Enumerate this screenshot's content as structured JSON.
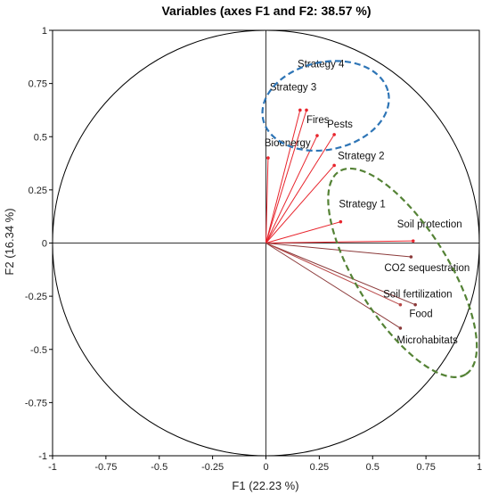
{
  "chart_data": {
    "type": "scatter",
    "title": "Variables (axes F1 and F2: 38.57 %)",
    "xlabel": "F1 (22.23 %)",
    "ylabel": "F2 (16.34 %)",
    "xlim": [
      -1,
      1
    ],
    "ylim": [
      -1,
      1
    ],
    "xticks": [
      "-1",
      "-0.75",
      "-0.5",
      "-0.25",
      "0",
      "0.25",
      "0.5",
      "0.75",
      "1"
    ],
    "yticks": [
      "1",
      "0.75",
      "0.5",
      "0.25",
      "0",
      "-0.25",
      "-0.5",
      "-0.75",
      "-1"
    ],
    "tick_values": [
      -1,
      -0.75,
      -0.5,
      -0.25,
      0,
      0.25,
      0.5,
      0.75,
      1
    ],
    "grid": false,
    "unit_circle": true,
    "vectors": [
      {
        "name": "Strategy 4",
        "x": 0.19,
        "y": 0.625,
        "color": "#e8242c"
      },
      {
        "name": "Strategy 3",
        "x": 0.16,
        "y": 0.625,
        "color": "#e8242c"
      },
      {
        "name": "Fires",
        "x": 0.24,
        "y": 0.505,
        "color": "#e8242c"
      },
      {
        "name": "Pests",
        "x": 0.32,
        "y": 0.51,
        "color": "#e8242c"
      },
      {
        "name": "Bioenergy",
        "x": 0.01,
        "y": 0.4,
        "color": "#e8242c"
      },
      {
        "name": "Strategy 2",
        "x": 0.32,
        "y": 0.365,
        "color": "#e8242c"
      },
      {
        "name": "Strategy 1",
        "x": 0.35,
        "y": 0.1,
        "color": "#e8242c"
      },
      {
        "name": "Soil protection",
        "x": 0.69,
        "y": 0.01,
        "color": "#e8242c"
      },
      {
        "name": "CO2 sequestration",
        "x": 0.68,
        "y": -0.065,
        "color": "#8b3a3a"
      },
      {
        "name": "Soil fertilization",
        "x": 0.7,
        "y": -0.29,
        "color": "#8b3a3a"
      },
      {
        "name": "Food",
        "x": 0.63,
        "y": -0.29,
        "color": "#b84848"
      },
      {
        "name": "Microhabitats",
        "x": 0.63,
        "y": -0.4,
        "color": "#8b3a3a"
      }
    ],
    "groups": [
      {
        "color": "#2e75b6",
        "style": "dashed",
        "cx": 0.28,
        "cy": 0.645,
        "rx": 0.3,
        "ry": 0.205,
        "rotation": -12
      },
      {
        "color": "#548235",
        "style": "dashed",
        "cx": 0.64,
        "cy": -0.14,
        "rx": 0.56,
        "ry": 0.215,
        "rotation": 58
      }
    ]
  }
}
